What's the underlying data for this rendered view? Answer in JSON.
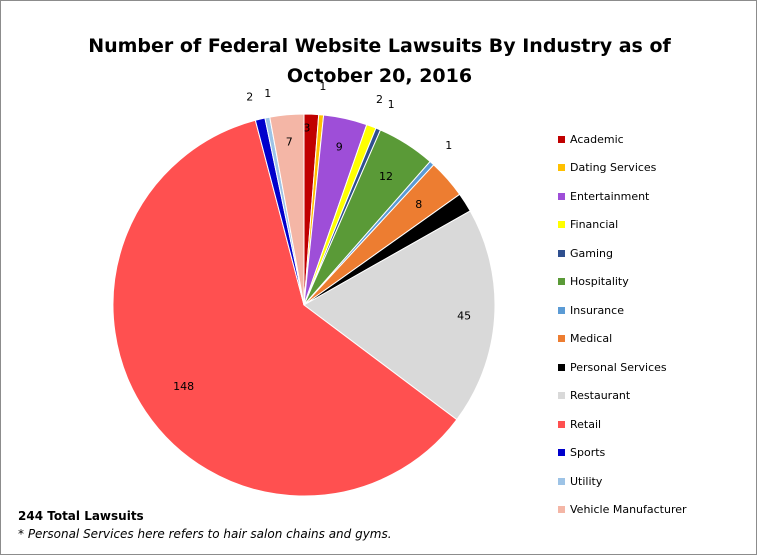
{
  "chart_data": {
    "type": "pie",
    "title_line1": "Number of Federal Website Lawsuits By Industry as of",
    "title_line2": "October 20, 2016",
    "slices": [
      {
        "label": "Academic",
        "value": 3,
        "color": "#C00000"
      },
      {
        "label": "Dating Services",
        "value": 1,
        "color": "#FFC000"
      },
      {
        "label": "Entertainment",
        "value": 9,
        "color": "#9E4ED8"
      },
      {
        "label": "Financial",
        "value": 2,
        "color": "#FFFF00"
      },
      {
        "label": "Gaming",
        "value": 1,
        "color": "#2F4F8F"
      },
      {
        "label": "Hospitality",
        "value": 12,
        "color": "#5A9A37"
      },
      {
        "label": "Insurance",
        "value": 1,
        "color": "#5B9BD5"
      },
      {
        "label": "Medical",
        "value": 8,
        "color": "#ED7D31"
      },
      {
        "label": "Personal Services",
        "value": 4,
        "color": "#000000"
      },
      {
        "label": "Restaurant",
        "value": 45,
        "color": "#D9D9D9"
      },
      {
        "label": "Retail",
        "value": 148,
        "color": "#FF5050"
      },
      {
        "label": "Sports",
        "value": 2,
        "color": "#0000CC"
      },
      {
        "label": "Utility",
        "value": 1,
        "color": "#9DC3E6"
      },
      {
        "label": "Vehicle Manufacturer",
        "value": 7,
        "color": "#F4B6A6"
      }
    ],
    "printed_labels": {
      "Academic": "3",
      "Dating Services": "1",
      "Entertainment": "9",
      "Financial": "2",
      "Gaming": "1",
      "Hospitality": "12",
      "Insurance": "1",
      "Medical": "8",
      "Restaurant": "45",
      "Retail": "148",
      "Sports": "2",
      "Utility": "1",
      "Vehicle Manufacturer": "7"
    },
    "legend_placement": "right",
    "total_text": "244 Total Lawsuits",
    "footnote": "* Personal Services here refers to hair salon chains and gyms."
  }
}
